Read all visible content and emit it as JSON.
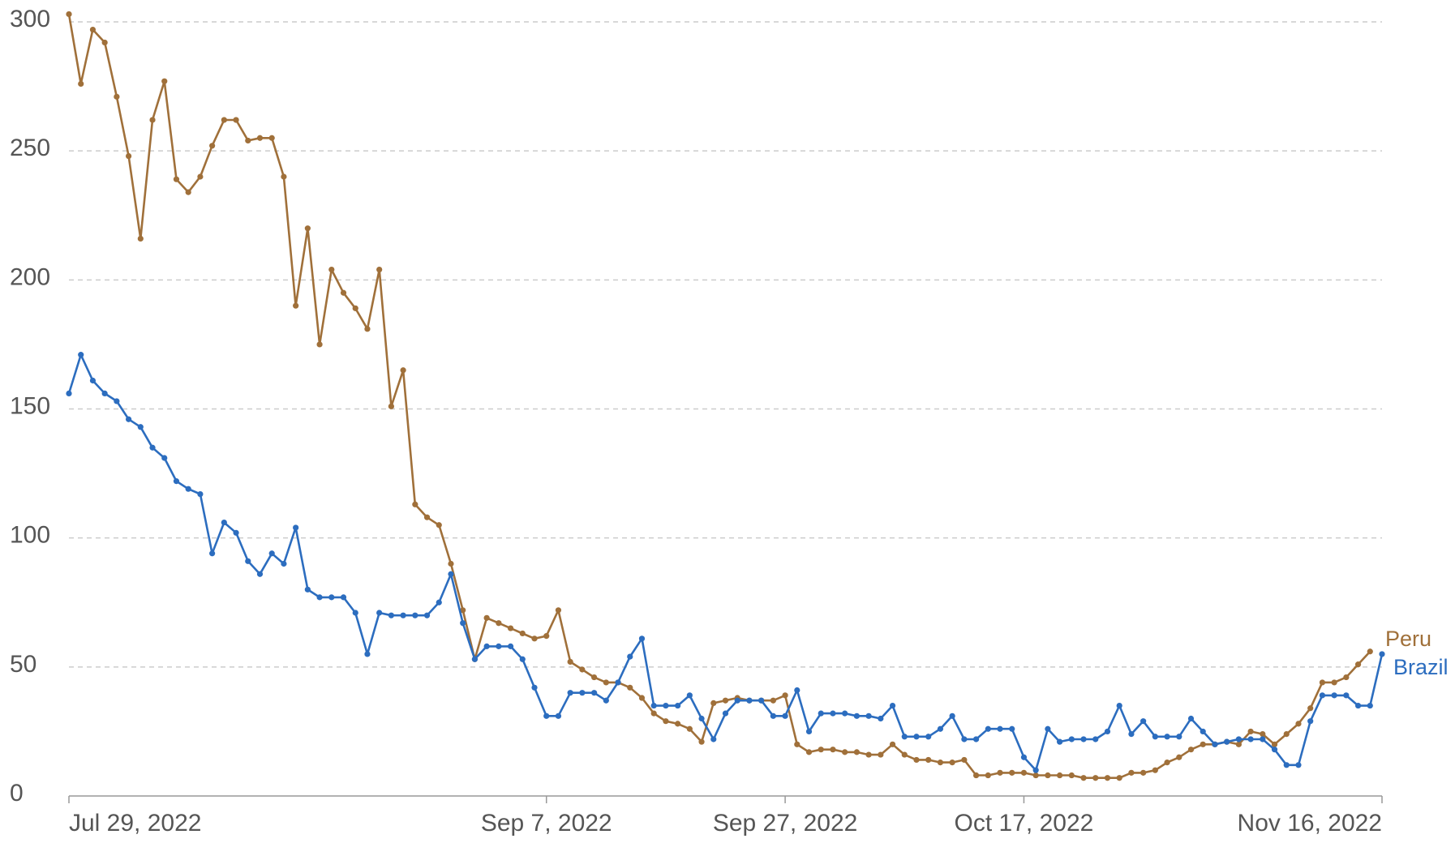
{
  "chart_data": {
    "type": "line",
    "x": [
      "2022-07-29",
      "2022-07-30",
      "2022-07-31",
      "2022-08-01",
      "2022-08-02",
      "2022-08-03",
      "2022-08-04",
      "2022-08-05",
      "2022-08-06",
      "2022-08-07",
      "2022-08-08",
      "2022-08-09",
      "2022-08-10",
      "2022-08-11",
      "2022-08-12",
      "2022-08-13",
      "2022-08-14",
      "2022-08-15",
      "2022-08-16",
      "2022-08-17",
      "2022-08-18",
      "2022-08-19",
      "2022-08-20",
      "2022-08-21",
      "2022-08-22",
      "2022-08-23",
      "2022-08-24",
      "2022-08-25",
      "2022-08-26",
      "2022-08-27",
      "2022-08-28",
      "2022-08-29",
      "2022-08-30",
      "2022-08-31",
      "2022-09-01",
      "2022-09-02",
      "2022-09-03",
      "2022-09-04",
      "2022-09-05",
      "2022-09-06",
      "2022-09-07",
      "2022-09-08",
      "2022-09-09",
      "2022-09-10",
      "2022-09-11",
      "2022-09-12",
      "2022-09-13",
      "2022-09-14",
      "2022-09-15",
      "2022-09-16",
      "2022-09-17",
      "2022-09-18",
      "2022-09-19",
      "2022-09-20",
      "2022-09-21",
      "2022-09-22",
      "2022-09-23",
      "2022-09-24",
      "2022-09-25",
      "2022-09-26",
      "2022-09-27",
      "2022-09-28",
      "2022-09-29",
      "2022-09-30",
      "2022-10-01",
      "2022-10-02",
      "2022-10-03",
      "2022-10-04",
      "2022-10-05",
      "2022-10-06",
      "2022-10-07",
      "2022-10-08",
      "2022-10-09",
      "2022-10-10",
      "2022-10-11",
      "2022-10-12",
      "2022-10-13",
      "2022-10-14",
      "2022-10-15",
      "2022-10-16",
      "2022-10-17",
      "2022-10-18",
      "2022-10-19",
      "2022-10-20",
      "2022-10-21",
      "2022-10-22",
      "2022-10-23",
      "2022-10-24",
      "2022-10-25",
      "2022-10-26",
      "2022-10-27",
      "2022-10-28",
      "2022-10-29",
      "2022-10-30",
      "2022-10-31",
      "2022-11-01",
      "2022-11-02",
      "2022-11-03",
      "2022-11-04",
      "2022-11-05",
      "2022-11-06",
      "2022-11-07",
      "2022-11-08",
      "2022-11-09",
      "2022-11-10",
      "2022-11-11",
      "2022-11-12",
      "2022-11-13",
      "2022-11-14",
      "2022-11-15",
      "2022-11-16"
    ],
    "series": [
      {
        "name": "Peru",
        "color": "#a0703a",
        "values": [
          303,
          276,
          297,
          292,
          271,
          248,
          216,
          262,
          277,
          239,
          234,
          240,
          252,
          262,
          262,
          254,
          255,
          255,
          240,
          190,
          220,
          175,
          204,
          195,
          189,
          181,
          204,
          151,
          165,
          113,
          108,
          105,
          90,
          72,
          53,
          69,
          67,
          65,
          63,
          61,
          62,
          72,
          52,
          49,
          46,
          44,
          44,
          42,
          38,
          32,
          29,
          28,
          26,
          21,
          36,
          37,
          38,
          37,
          37,
          37,
          39,
          20,
          17,
          18,
          18,
          17,
          17,
          16,
          16,
          20,
          16,
          14,
          14,
          13,
          13,
          14,
          8,
          8,
          9,
          9,
          9,
          8,
          8,
          8,
          8,
          7,
          7,
          7,
          7,
          9,
          9,
          10,
          13,
          15,
          18,
          20,
          20,
          21,
          20,
          25,
          24,
          20,
          24,
          28,
          34,
          44,
          44,
          46,
          51,
          56,
          null
        ]
      },
      {
        "name": "Brazil",
        "color": "#2c6dbf",
        "values": [
          156,
          171,
          161,
          156,
          153,
          146,
          143,
          135,
          131,
          122,
          119,
          117,
          94,
          106,
          102,
          91,
          86,
          94,
          90,
          104,
          80,
          77,
          77,
          77,
          71,
          55,
          71,
          70,
          70,
          70,
          70,
          75,
          86,
          67,
          53,
          58,
          58,
          58,
          53,
          42,
          31,
          31,
          40,
          40,
          40,
          37,
          44,
          54,
          61,
          35,
          35,
          35,
          39,
          30,
          22,
          32,
          37,
          37,
          37,
          31,
          31,
          41,
          25,
          32,
          32,
          32,
          31,
          31,
          30,
          35,
          23,
          23,
          23,
          26,
          31,
          22,
          22,
          26,
          26,
          26,
          15,
          10,
          26,
          21,
          22,
          22,
          22,
          25,
          35,
          24,
          29,
          23,
          23,
          23,
          30,
          25,
          20,
          21,
          22,
          22,
          22,
          18,
          12,
          12,
          29,
          39,
          39,
          39,
          35,
          35,
          55
        ]
      }
    ],
    "xlim": [
      "2022-07-29",
      "2022-11-16"
    ],
    "xticks": [
      {
        "value": "2022-07-29",
        "label": "Jul 29, 2022"
      },
      {
        "value": "2022-09-07",
        "label": "Sep 7, 2022"
      },
      {
        "value": "2022-09-27",
        "label": "Sep 27, 2022"
      },
      {
        "value": "2022-10-17",
        "label": "Oct 17, 2022"
      },
      {
        "value": "2022-11-16",
        "label": "Nov 16, 2022"
      }
    ],
    "ylim": [
      0,
      300
    ],
    "yticks": [
      0,
      50,
      100,
      150,
      200,
      250,
      300
    ],
    "grid": true
  }
}
